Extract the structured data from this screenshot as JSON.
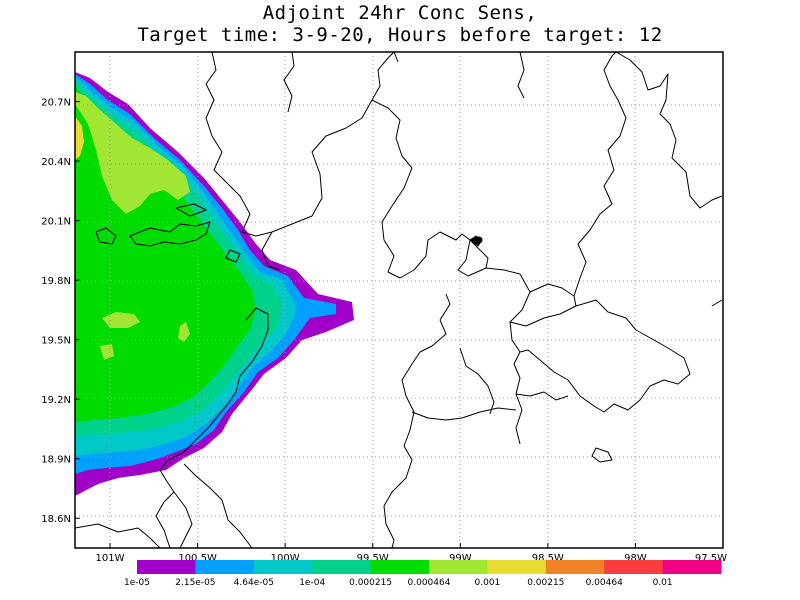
{
  "title": {
    "line1": "Adjoint 24hr Conc Sens,",
    "line2": "Target time: 3-9-20, Hours before target: 12"
  },
  "map": {
    "lon_range": [
      -101.2,
      -97.5
    ],
    "lat_range": [
      18.45,
      20.95
    ],
    "lat_ticks": [
      {
        "value": 20.7,
        "label": "20.7N"
      },
      {
        "value": 20.4,
        "label": "20.4N"
      },
      {
        "value": 20.1,
        "label": "20.1N"
      },
      {
        "value": 19.8,
        "label": "19.8N"
      },
      {
        "value": 19.5,
        "label": "19.5N"
      },
      {
        "value": 19.2,
        "label": "19.2N"
      },
      {
        "value": 18.9,
        "label": "18.9N"
      },
      {
        "value": 18.6,
        "label": "18.6N"
      }
    ],
    "lon_ticks": [
      {
        "value": -101.0,
        "label": "101W"
      },
      {
        "value": -100.5,
        "label": "100.5W"
      },
      {
        "value": -100.0,
        "label": "100W"
      },
      {
        "value": -99.5,
        "label": "99.5W"
      },
      {
        "value": -99.0,
        "label": "99W"
      },
      {
        "value": -98.5,
        "label": "98.5W"
      },
      {
        "value": -98.0,
        "label": "98W"
      },
      {
        "value": -97.5,
        "label": "97.5W"
      }
    ],
    "grid": "dotted",
    "marker": {
      "lon": -98.9,
      "lat": 20.05,
      "name": "target-point"
    }
  },
  "colorbar": {
    "colors": [
      "#a000c8",
      "#00a0ff",
      "#00c8c8",
      "#00d28c",
      "#00dc00",
      "#a0e632",
      "#e6dc32",
      "#f08228",
      "#fa3c3c",
      "#f00082"
    ],
    "labels": [
      "1e-05",
      "2.15e-05",
      "4.64e-05",
      "1e-04",
      "0.000215",
      "0.000464",
      "0.001",
      "0.00215",
      "0.00464",
      "0.01"
    ]
  }
}
